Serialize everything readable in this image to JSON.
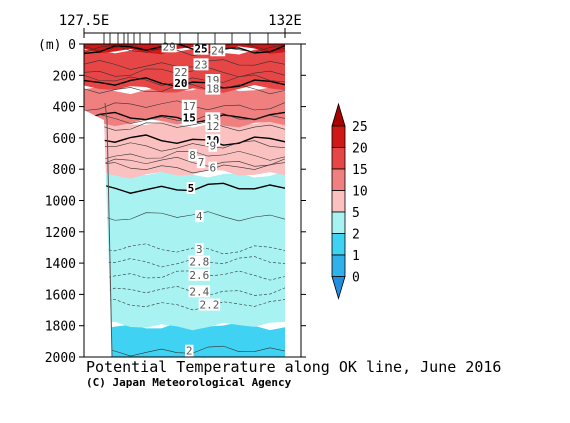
{
  "chart_data": {
    "type": "heatmap",
    "title": "Potential Temperature along OK line, June 2016",
    "credit": "(C) Japan Meteorological Agency",
    "x_ticks": [
      "127.5E",
      "132E"
    ],
    "y_unit_label": "(m)",
    "y_ticks": [
      0,
      200,
      400,
      600,
      800,
      1000,
      1200,
      1400,
      1600,
      1800,
      2000
    ],
    "ylim": [
      0,
      2000
    ],
    "colorbar": {
      "labels": [
        "0",
        "1",
        "2",
        "5",
        "10",
        "15",
        "20",
        "25"
      ],
      "levels": [
        0,
        1,
        2,
        5,
        10,
        15,
        20,
        25
      ],
      "colors": [
        "#1f8fde",
        "#2fb2ea",
        "#3fd2f2",
        "#a8f2f2",
        "#fbc0c0",
        "#f08080",
        "#e64646",
        "#d01818",
        "#aa0000"
      ]
    },
    "bands": [
      {
        "from": 1800,
        "to": 2000,
        "color": "#3fd2f2"
      },
      {
        "from": 830,
        "to": 1800,
        "color": "#a8f2f2"
      },
      {
        "from": 505,
        "to": 830,
        "color": "#fbc0c0"
      },
      {
        "from": 290,
        "to": 505,
        "color": "#f08080"
      },
      {
        "from": 40,
        "to": 290,
        "color": "#e64646"
      },
      {
        "from": 0,
        "to": 40,
        "color": "#d01818"
      }
    ],
    "contour_labels": [
      {
        "text": "29",
        "x": 0.31,
        "depth": 15
      },
      {
        "text": "25",
        "x": 0.5,
        "depth": 30,
        "bold": true
      },
      {
        "text": "24",
        "x": 0.6,
        "depth": 40
      },
      {
        "text": "23",
        "x": 0.5,
        "depth": 130
      },
      {
        "text": "22",
        "x": 0.38,
        "depth": 180
      },
      {
        "text": "20",
        "x": 0.38,
        "depth": 250,
        "bold": true
      },
      {
        "text": "19",
        "x": 0.57,
        "depth": 230
      },
      {
        "text": "18",
        "x": 0.57,
        "depth": 285
      },
      {
        "text": "17",
        "x": 0.43,
        "depth": 395
      },
      {
        "text": "15",
        "x": 0.43,
        "depth": 470,
        "bold": true
      },
      {
        "text": "13",
        "x": 0.57,
        "depth": 475
      },
      {
        "text": "12",
        "x": 0.57,
        "depth": 525
      },
      {
        "text": "10",
        "x": 0.57,
        "depth": 615,
        "bold": true
      },
      {
        "text": "9",
        "x": 0.57,
        "depth": 650
      },
      {
        "text": "8",
        "x": 0.45,
        "depth": 710
      },
      {
        "text": "7",
        "x": 0.5,
        "depth": 755
      },
      {
        "text": "6",
        "x": 0.57,
        "depth": 790
      },
      {
        "text": "5",
        "x": 0.44,
        "depth": 920,
        "bold": true
      },
      {
        "text": "4",
        "x": 0.49,
        "depth": 1100
      },
      {
        "text": "3",
        "x": 0.49,
        "depth": 1310
      },
      {
        "text": "2.8",
        "x": 0.49,
        "depth": 1390
      },
      {
        "text": "2.6",
        "x": 0.49,
        "depth": 1475
      },
      {
        "text": "2.4",
        "x": 0.49,
        "depth": 1580
      },
      {
        "text": "2.2",
        "x": 0.55,
        "depth": 1665
      },
      {
        "text": "2",
        "x": 0.43,
        "depth": 1960
      }
    ]
  }
}
